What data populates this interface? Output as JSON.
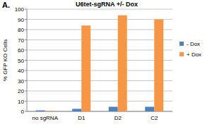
{
  "chart_data": {
    "type": "bar",
    "title": "U6tet-sgRNA +/- Dox",
    "annotations": [
      "A."
    ],
    "y_label": "% GFP KO Cells",
    "categories": [
      "no sgRNA",
      "D1",
      "D2",
      "C2"
    ],
    "series": [
      {
        "name": "- Dox",
        "color": "#4f81bd",
        "values": [
          1,
          2.5,
          4.5,
          4.5
        ]
      },
      {
        "name": "+ Dox",
        "color": "#f79646",
        "values": [
          0.5,
          84,
          94,
          90
        ]
      }
    ],
    "ylim": [
      0,
      100
    ],
    "yticks": [
      0,
      10,
      20,
      30,
      40,
      50,
      60,
      70,
      80,
      90,
      100
    ],
    "grid": true,
    "legend": "right"
  }
}
